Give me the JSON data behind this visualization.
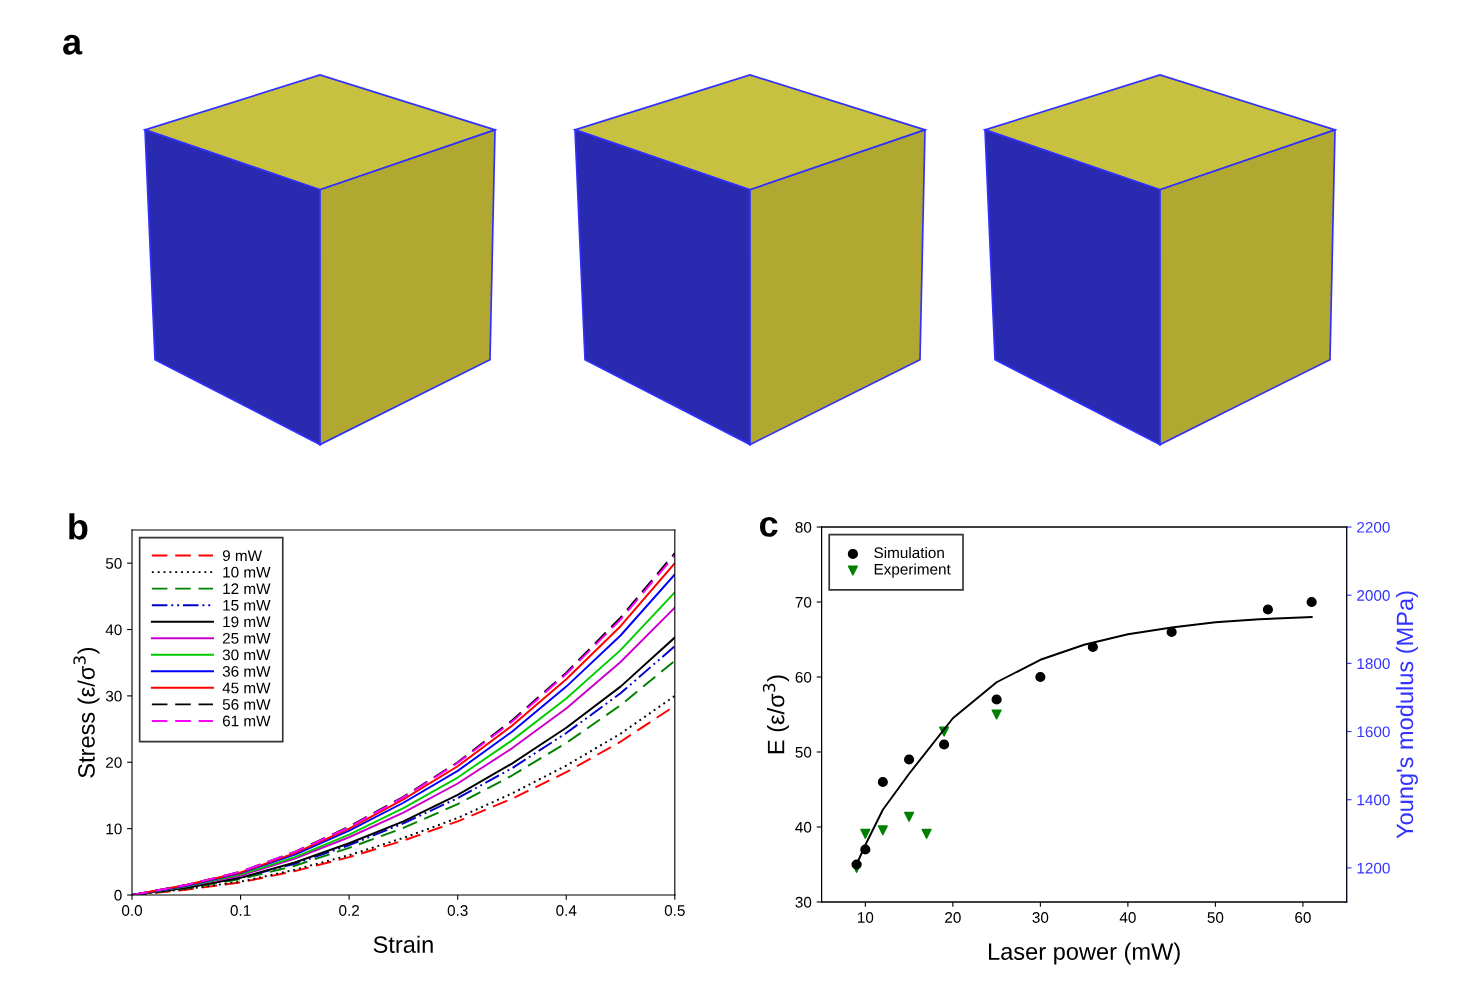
{
  "chart_data": [
    {
      "type": "other",
      "annotations": [
        "a"
      ]
    },
    {
      "type": "line",
      "annotations": [
        "b"
      ],
      "xlabel": "Strain",
      "ylabel": "Stress (ε/σ$^{3}$)",
      "x": [
        0,
        0.05,
        0.1,
        0.15,
        0.2,
        0.25,
        0.3,
        0.35,
        0.4,
        0.45,
        0.5
      ],
      "xlim": [
        0,
        0.5
      ],
      "ylim": [
        0,
        55
      ],
      "xticks": [
        {
          "value": 0,
          "label": "0.0"
        },
        0.1,
        0.2,
        0.3,
        0.4,
        0.5
      ],
      "yticks": [
        0,
        10,
        20,
        30,
        40,
        50
      ],
      "legend": "top left",
      "grid": false,
      "series": [
        {
          "name": "9 mW",
          "color": "#ff0000",
          "line_style": "dashed",
          "values": [
            0,
            0.8,
            1.9,
            3.6,
            5.7,
            8.2,
            11.1,
            14.5,
            18.5,
            23.1,
            28.5
          ]
        },
        {
          "name": "10 mW",
          "color": "#000000",
          "line_style": "dotted",
          "values": [
            0,
            0.9,
            2.0,
            3.8,
            6.0,
            8.6,
            11.6,
            15.3,
            19.5,
            24.3,
            30
          ]
        },
        {
          "name": "12 mW",
          "color": "#008000",
          "line_style": "dashed",
          "values": [
            0,
            1.0,
            2.4,
            4.4,
            7.1,
            10.1,
            13.7,
            18.0,
            22.9,
            28.6,
            35.3
          ]
        },
        {
          "name": "15 mW",
          "color": "#0000cc",
          "line_style": "dashdot",
          "values": [
            0,
            1.1,
            2.6,
            4.7,
            7.5,
            10.8,
            14.6,
            19.1,
            24.4,
            30.4,
            37.5
          ]
        },
        {
          "name": "19 mW",
          "color": "#000000",
          "line_style": "solid",
          "values": [
            0,
            1.1,
            2.6,
            4.9,
            7.8,
            11.1,
            15.1,
            19.8,
            25.2,
            31.4,
            38.8
          ]
        },
        {
          "name": "25 mW",
          "color": "#cc00cc",
          "line_style": "solid",
          "values": [
            0,
            1.3,
            2.9,
            5.5,
            8.7,
            12.4,
            16.8,
            22.1,
            28.1,
            35.1,
            43.3
          ]
        },
        {
          "name": "30 mW",
          "color": "#00cc00",
          "line_style": "solid",
          "values": [
            0,
            1.3,
            3.1,
            5.7,
            9.1,
            13.1,
            17.7,
            23.3,
            29.6,
            36.9,
            45.6
          ]
        },
        {
          "name": "36 mW",
          "color": "#0000ff",
          "line_style": "solid",
          "values": [
            0,
            1.4,
            3.3,
            6.1,
            9.7,
            13.9,
            18.7,
            24.6,
            31.4,
            39.1,
            48.3
          ]
        },
        {
          "name": "45 mW",
          "color": "#ff0000",
          "line_style": "solid",
          "values": [
            0,
            1.5,
            3.4,
            6.3,
            10,
            14.4,
            19.4,
            25.5,
            32.5,
            40.5,
            50
          ]
        },
        {
          "name": "56 mW",
          "color": "#000000",
          "line_style": "dashed",
          "values": [
            0,
            1.5,
            3.5,
            6.5,
            10.3,
            14.8,
            20,
            26.3,
            33.5,
            41.8,
            51.5
          ]
        },
        {
          "name": "61 mW",
          "color": "#ff00ff",
          "line_style": "dashed",
          "values": [
            0,
            1.5,
            3.5,
            6.5,
            10.2,
            14.7,
            19.9,
            26.1,
            33.3,
            41.5,
            51.2
          ]
        }
      ]
    },
    {
      "type": "scatter",
      "annotations": [
        "c"
      ],
      "xlabel": "Laser power (mW)",
      "ylabel": "E (ε/σ$^{3}$)",
      "y2label": "Young's modulus (MPa)",
      "xlim": [
        5,
        65
      ],
      "ylim": [
        30,
        80
      ],
      "y2lim": [
        1100,
        2200
      ],
      "xticks": [
        10,
        20,
        30,
        40,
        50,
        60
      ],
      "yticks": [
        30,
        40,
        50,
        60,
        70,
        80
      ],
      "y2ticks": [
        1200,
        1400,
        1600,
        1800,
        2000,
        2200
      ],
      "legend": "top left",
      "grid": false,
      "series": [
        {
          "name": "Simulation",
          "color": "#000000",
          "marker": "circle",
          "x": [
            9,
            10,
            12,
            15,
            19,
            25,
            30,
            36,
            45,
            56,
            61
          ],
          "values": [
            35,
            37,
            46,
            49,
            51,
            57,
            60,
            64,
            66,
            69,
            70
          ]
        },
        {
          "name": "Experiment",
          "color": "#008000",
          "marker": "triangle",
          "axis": "y2",
          "x": [
            9,
            10,
            12,
            15,
            17,
            19,
            25
          ],
          "values": [
            1200,
            1300,
            1310,
            1350,
            1300,
            1600,
            1650
          ]
        },
        {
          "type": "line",
          "color": "#000000",
          "x": [
            9,
            10,
            12,
            15,
            20,
            25,
            30,
            35,
            40,
            45,
            50,
            55,
            61
          ],
          "values": [
            35,
            37.6,
            42.3,
            47.1,
            54.5,
            59.3,
            62.3,
            64.3,
            65.7,
            66.6,
            67.3,
            67.7,
            68.0
          ]
        }
      ]
    }
  ]
}
